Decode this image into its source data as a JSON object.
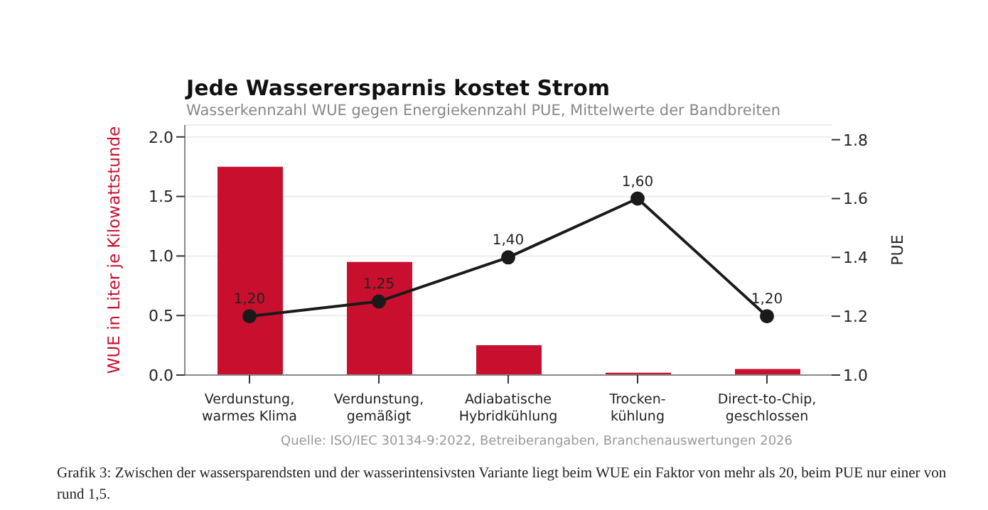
{
  "chart_data": {
    "type": "bar",
    "title": "Jede Wasserersparnis kostet Strom",
    "subtitle": "Wasserkennzahl WUE gegen Energiekennzahl PUE, Mittelwerte der Bandbreiten",
    "ylabel": "WUE in Liter je Kilowattstunde",
    "y2label": "PUE",
    "categories": [
      "Verdunstung,\nwarmes Klima",
      "Verdunstung,\ngemäßigt",
      "Adiabatische\nHybridkühlung",
      "Trocken-\nkühlung",
      "Direct-to-Chip,\ngeschlossen"
    ],
    "series": [
      {
        "color": "#c8102e",
        "values": [
          1.75,
          0.95,
          0.25,
          0.02,
          0.05
        ]
      },
      {
        "type": "line",
        "axis": "y2",
        "color": "#1a1a1a",
        "marker": "circle",
        "values": [
          1.2,
          1.25,
          1.4,
          1.6,
          1.2
        ],
        "value_labels": [
          "1,20",
          "1,25",
          "1,40",
          "1,60",
          "1,20"
        ]
      }
    ],
    "ylim": [
      0,
      2.1
    ],
    "yticks": [
      {
        "value": 0,
        "label": "0.0"
      },
      0.5,
      {
        "value": 1,
        "label": "1.0"
      },
      1.5,
      {
        "value": 2,
        "label": "2.0"
      }
    ],
    "y2lim": [
      1.0,
      1.85
    ],
    "y2ticks": [
      {
        "value": 1,
        "label": "1.0"
      },
      1.2,
      1.4,
      1.6,
      1.8
    ],
    "grid": "y",
    "legend": false,
    "annotations": [
      "Quelle: ISO/IEC 30134-9:2022, Betreiberangaben, Branchenauswertungen 2026",
      "Grafik 3: Zwischen der wassersparendsten und der wasserintensivsten Variante liegt beim WUE ein Faktor von mehr als 20, beim PUE nur einer von rund 1,5."
    ]
  }
}
